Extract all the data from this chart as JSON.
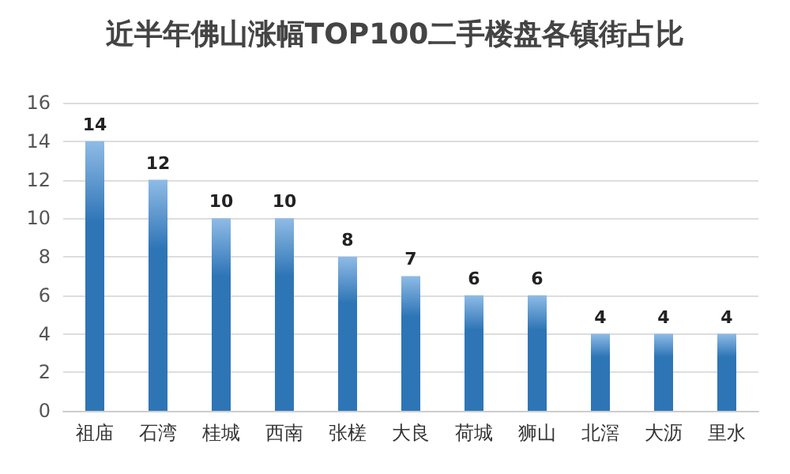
{
  "chart_data": {
    "type": "bar",
    "title": "近半年佛山涨幅TOP100二手楼盘各镇街占比",
    "categories": [
      "祖庙",
      "石湾",
      "桂城",
      "西南",
      "张槎",
      "大良",
      "荷城",
      "狮山",
      "北滘",
      "大沥",
      "里水"
    ],
    "values": [
      14,
      12,
      10,
      10,
      8,
      7,
      6,
      6,
      4,
      4,
      4
    ],
    "color": "#2e75b6",
    "ylim": [
      0,
      16
    ],
    "yticks": [
      0,
      2,
      4,
      6,
      8,
      10,
      12,
      14,
      16
    ],
    "grid": "y",
    "data_labels": true
  }
}
